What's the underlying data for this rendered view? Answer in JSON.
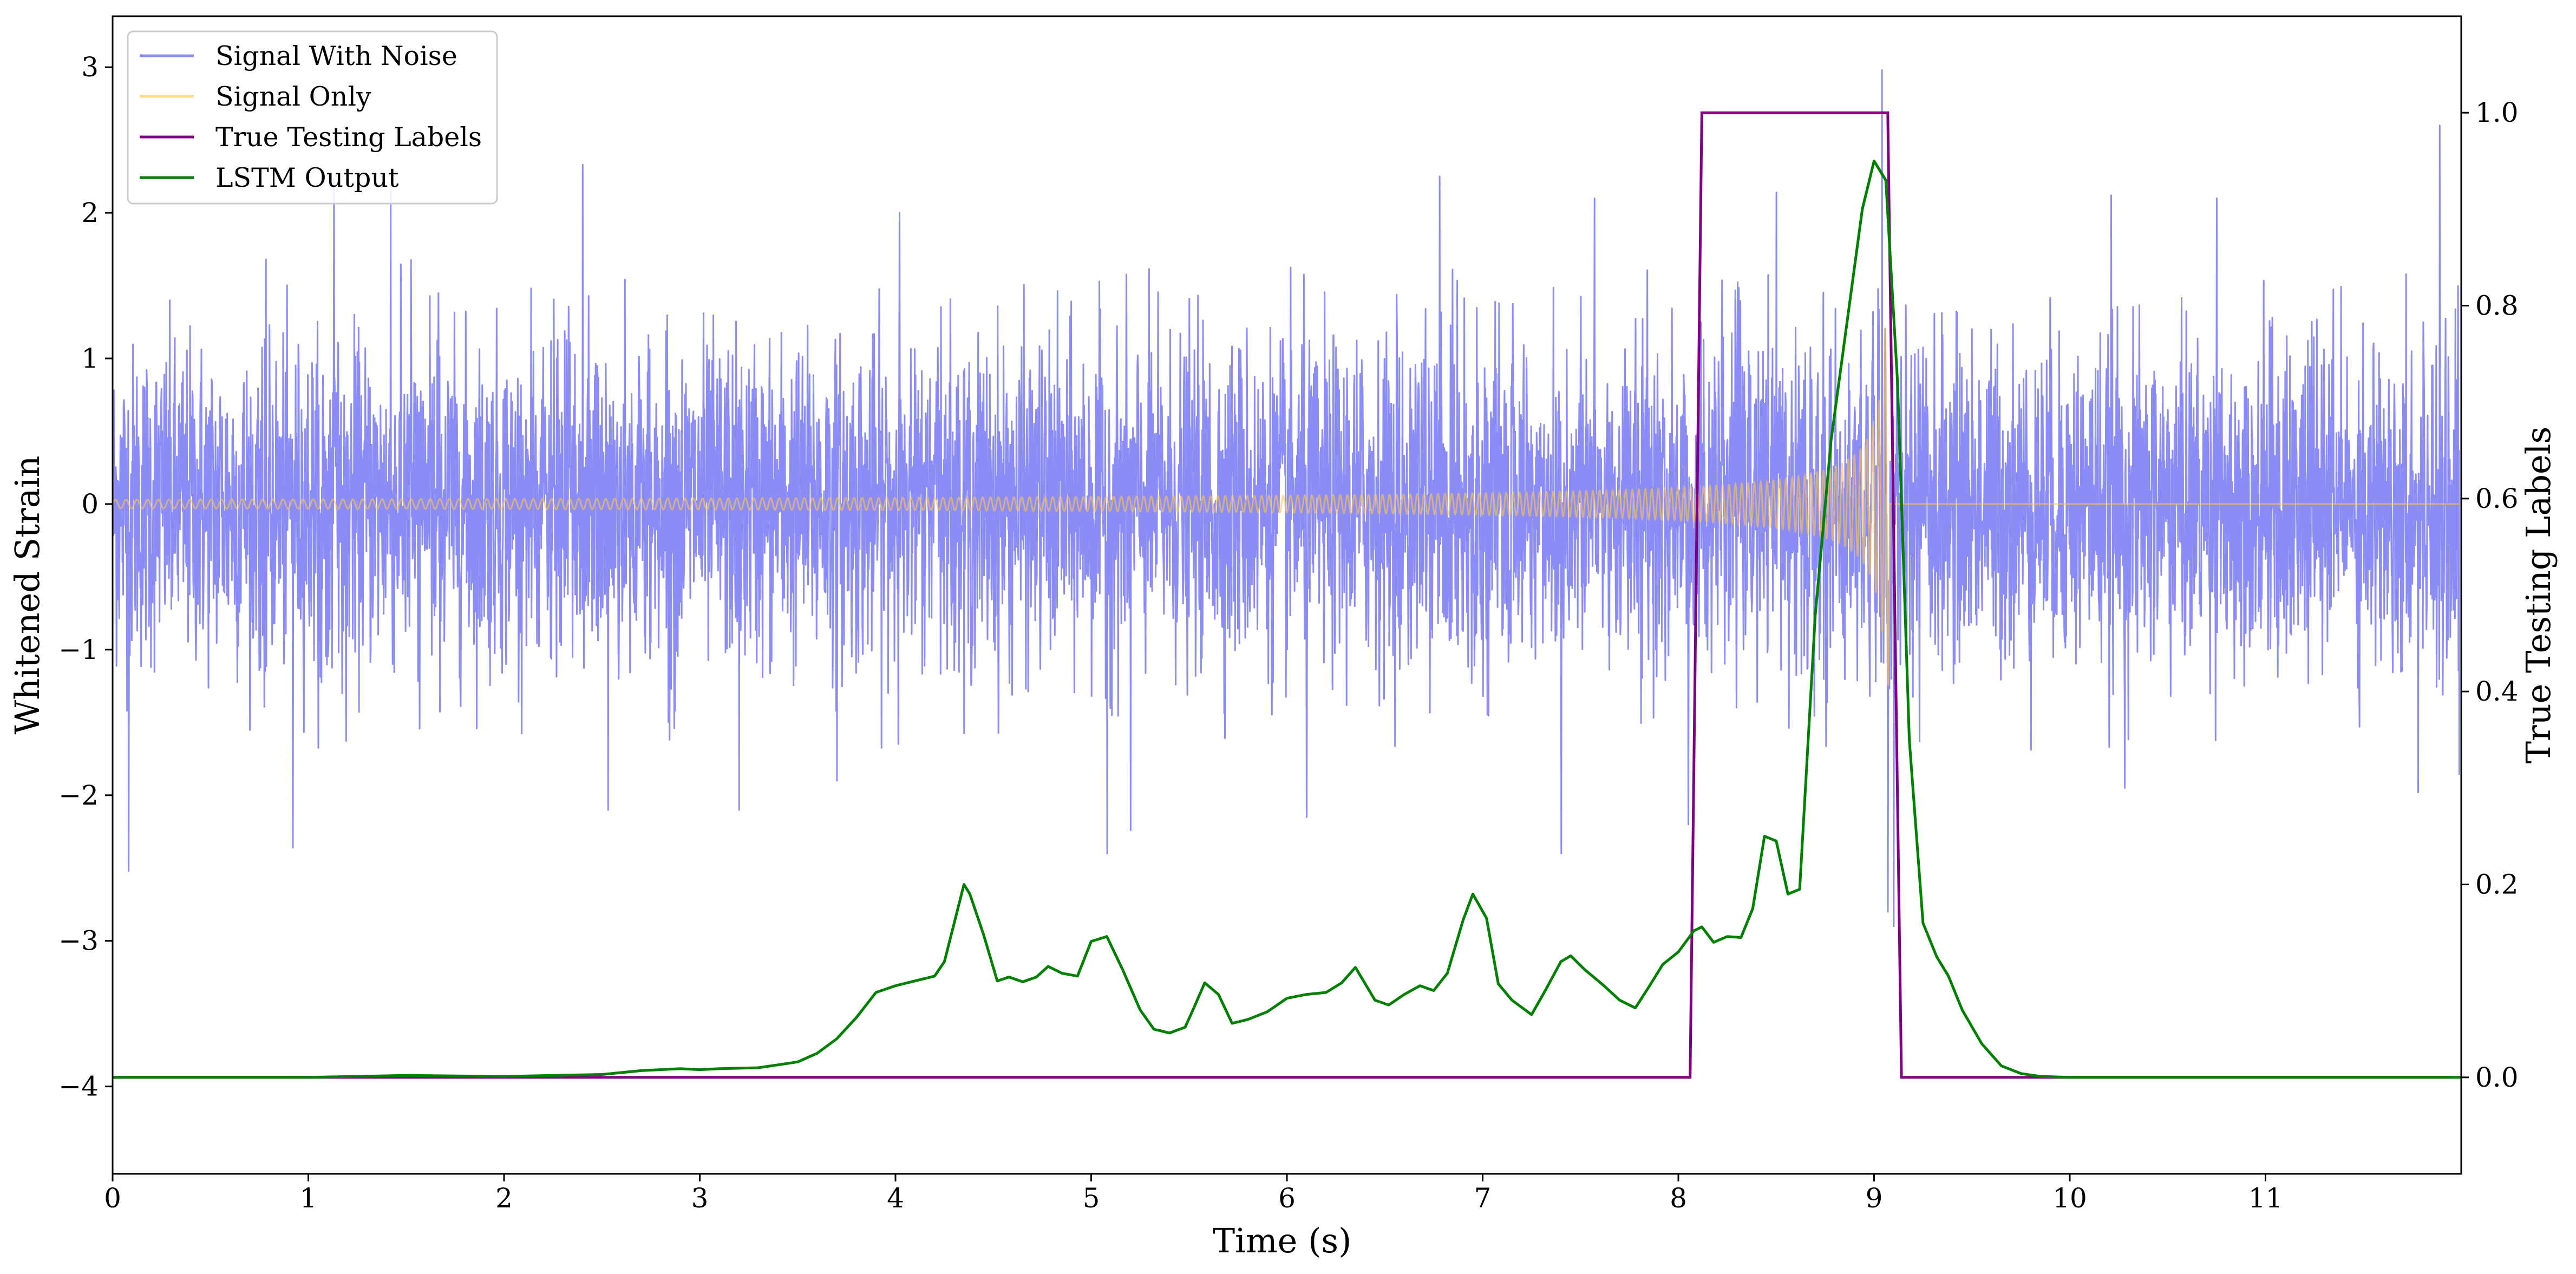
{
  "chart_data": {
    "type": "line",
    "title": "",
    "xlabel": "Time (s)",
    "ylabel_left": "Whitened Strain",
    "ylabel_right": "True Testing Labels",
    "xlim": [
      0,
      12
    ],
    "ylim_left": [
      -4.6,
      3.35
    ],
    "ylim_right": [
      -0.1,
      1.1
    ],
    "x_ticks": [
      0,
      1,
      2,
      3,
      4,
      5,
      6,
      7,
      8,
      9,
      10,
      11
    ],
    "x_tick_labels": [
      "0",
      "1",
      "2",
      "3",
      "4",
      "5",
      "6",
      "7",
      "8",
      "9",
      "10",
      "11"
    ],
    "y_left_ticks": [
      -4,
      -3,
      -2,
      -1,
      0,
      1,
      2,
      3
    ],
    "y_left_tick_labels": [
      "−4",
      "−3",
      "−2",
      "−1",
      "0",
      "1",
      "2",
      "3"
    ],
    "y_right_ticks": [
      0.0,
      0.2,
      0.4,
      0.6,
      0.8,
      1.0
    ],
    "y_right_tick_labels": [
      "0.0",
      "0.2",
      "0.4",
      "0.6",
      "0.8",
      "1.0"
    ],
    "grid": false,
    "legend_position": "upper-left",
    "series": [
      {
        "name": "Signal With Noise",
        "axis": "left",
        "color": "#8080f5",
        "description_only": false,
        "noise_std": 0.55,
        "extremes": [
          [
            0.08,
            -2.52
          ],
          [
            0.92,
            -2.36
          ],
          [
            1.13,
            2.24
          ],
          [
            1.42,
            2.15
          ],
          [
            2.4,
            2.33
          ],
          [
            2.53,
            -2.1
          ],
          [
            3.2,
            -2.1
          ],
          [
            3.7,
            -1.9
          ],
          [
            4.02,
            2.0
          ],
          [
            5.08,
            -2.4
          ],
          [
            5.2,
            -2.24
          ],
          [
            6.1,
            -2.15
          ],
          [
            6.78,
            2.25
          ],
          [
            7.4,
            -2.4
          ],
          [
            7.57,
            2.1
          ],
          [
            8.05,
            -2.2
          ],
          [
            8.5,
            2.14
          ],
          [
            9.04,
            2.98
          ],
          [
            9.07,
            -2.8
          ],
          [
            9.1,
            -2.9
          ],
          [
            10.21,
            2.12
          ],
          [
            10.28,
            -1.95
          ],
          [
            10.75,
            2.1
          ],
          [
            11.78,
            -1.98
          ],
          [
            11.89,
            2.6
          ],
          [
            11.99,
            -1.86
          ]
        ]
      },
      {
        "name": "Signal Only",
        "axis": "left",
        "color": "#fdc44a",
        "chirp": {
          "start": 0.0,
          "merger": 9.08,
          "start_amplitude": 0.03,
          "peak_amplitude": 1.25,
          "start_freq_hz": 18,
          "merger_freq_hz": 32
        }
      },
      {
        "name": "True Testing Labels",
        "axis": "right",
        "color": "#800080",
        "x": [
          0.0,
          8.06,
          8.12,
          9.07,
          9.14,
          11.95
        ],
        "y": [
          0.0,
          0.0,
          1.0,
          1.0,
          0.0,
          0.0
        ]
      },
      {
        "name": "LSTM Output",
        "axis": "right",
        "color": "#008000",
        "x": [
          0.0,
          1.0,
          1.5,
          2.0,
          2.5,
          2.7,
          2.9,
          3.0,
          3.1,
          3.3,
          3.5,
          3.6,
          3.7,
          3.8,
          3.9,
          4.0,
          4.1,
          4.2,
          4.25,
          4.3,
          4.35,
          4.38,
          4.45,
          4.52,
          4.58,
          4.65,
          4.72,
          4.78,
          4.85,
          4.93,
          5.0,
          5.08,
          5.16,
          5.25,
          5.32,
          5.4,
          5.48,
          5.52,
          5.58,
          5.65,
          5.72,
          5.8,
          5.9,
          6.0,
          6.1,
          6.2,
          6.28,
          6.35,
          6.45,
          6.52,
          6.6,
          6.68,
          6.75,
          6.82,
          6.9,
          6.95,
          7.02,
          7.08,
          7.15,
          7.25,
          7.32,
          7.4,
          7.45,
          7.52,
          7.62,
          7.7,
          7.78,
          7.85,
          7.92,
          8.0,
          8.08,
          8.12,
          8.18,
          8.25,
          8.32,
          8.38,
          8.44,
          8.5,
          8.56,
          8.62,
          8.7,
          8.78,
          8.86,
          8.94,
          9.0,
          9.06,
          9.12,
          9.18,
          9.25,
          9.32,
          9.38,
          9.45,
          9.55,
          9.65,
          9.75,
          9.85,
          10.0,
          12.0
        ],
        "y": [
          0.0,
          0.0,
          0.002,
          0.001,
          0.003,
          0.007,
          0.009,
          0.008,
          0.009,
          0.01,
          0.016,
          0.025,
          0.04,
          0.062,
          0.088,
          0.095,
          0.1,
          0.105,
          0.12,
          0.16,
          0.2,
          0.19,
          0.148,
          0.1,
          0.104,
          0.099,
          0.104,
          0.115,
          0.108,
          0.105,
          0.141,
          0.146,
          0.112,
          0.07,
          0.05,
          0.046,
          0.052,
          0.07,
          0.098,
          0.086,
          0.056,
          0.06,
          0.068,
          0.082,
          0.086,
          0.088,
          0.098,
          0.114,
          0.08,
          0.075,
          0.086,
          0.095,
          0.09,
          0.108,
          0.163,
          0.19,
          0.165,
          0.097,
          0.08,
          0.065,
          0.09,
          0.12,
          0.126,
          0.112,
          0.095,
          0.08,
          0.072,
          0.094,
          0.117,
          0.13,
          0.152,
          0.156,
          0.14,
          0.146,
          0.145,
          0.175,
          0.25,
          0.245,
          0.19,
          0.195,
          0.48,
          0.66,
          0.78,
          0.9,
          0.95,
          0.93,
          0.72,
          0.35,
          0.16,
          0.125,
          0.105,
          0.07,
          0.035,
          0.012,
          0.004,
          0.001,
          0.0,
          0.0
        ]
      }
    ]
  }
}
